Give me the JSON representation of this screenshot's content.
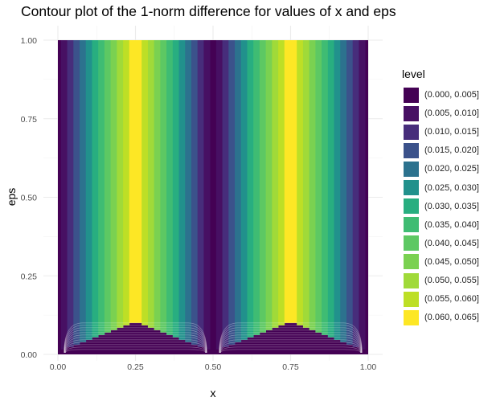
{
  "chart_data": {
    "type": "heatmap",
    "title": "Contour plot of the 1-norm difference for values of x and eps",
    "xlabel": "x",
    "ylabel": "eps",
    "xlim": [
      0,
      1
    ],
    "ylim": [
      0,
      1
    ],
    "x_ticks": [
      "0.00",
      "0.25",
      "0.50",
      "0.75",
      "1.00"
    ],
    "y_ticks": [
      "0.00",
      "0.25",
      "0.50",
      "0.75",
      "1.00"
    ],
    "legend": {
      "title": "level",
      "placement": "right",
      "levels": [
        {
          "label": "(0.000, 0.005]",
          "color": "#440154"
        },
        {
          "label": "(0.005, 0.010]",
          "color": "#471063"
        },
        {
          "label": "(0.010, 0.015]",
          "color": "#472D7B"
        },
        {
          "label": "(0.015, 0.020]",
          "color": "#3B528B"
        },
        {
          "label": "(0.020, 0.025]",
          "color": "#2C728E"
        },
        {
          "label": "(0.025, 0.030]",
          "color": "#21918C"
        },
        {
          "label": "(0.030, 0.035]",
          "color": "#28AE80"
        },
        {
          "label": "(0.035, 0.040]",
          "color": "#3FBC73"
        },
        {
          "label": "(0.040, 0.045]",
          "color": "#5DC863"
        },
        {
          "label": "(0.045, 0.050]",
          "color": "#7AD151"
        },
        {
          "label": "(0.050, 0.055]",
          "color": "#A0DA39"
        },
        {
          "label": "(0.055, 0.060]",
          "color": "#BDDF26"
        },
        {
          "label": "(0.060, 0.065]",
          "color": "#FDE725"
        }
      ]
    },
    "grid": true,
    "level_bands_by_x": [
      {
        "x_range": [
          0.0,
          0.01
        ],
        "level": 0
      },
      {
        "x_range": [
          0.01,
          0.03
        ],
        "level": 1
      },
      {
        "x_range": [
          0.03,
          0.05
        ],
        "level": 2
      },
      {
        "x_range": [
          0.05,
          0.07
        ],
        "level": 3
      },
      {
        "x_range": [
          0.07,
          0.09
        ],
        "level": 4
      },
      {
        "x_range": [
          0.09,
          0.11
        ],
        "level": 5
      },
      {
        "x_range": [
          0.11,
          0.13
        ],
        "level": 6
      },
      {
        "x_range": [
          0.13,
          0.15
        ],
        "level": 7
      },
      {
        "x_range": [
          0.15,
          0.17
        ],
        "level": 8
      },
      {
        "x_range": [
          0.17,
          0.19
        ],
        "level": 9
      },
      {
        "x_range": [
          0.19,
          0.21
        ],
        "level": 10
      },
      {
        "x_range": [
          0.21,
          0.23
        ],
        "level": 11
      },
      {
        "x_range": [
          0.23,
          0.27
        ],
        "level": 12
      },
      {
        "x_range": [
          0.27,
          0.29
        ],
        "level": 11
      },
      {
        "x_range": [
          0.29,
          0.31
        ],
        "level": 10
      },
      {
        "x_range": [
          0.31,
          0.33
        ],
        "level": 9
      },
      {
        "x_range": [
          0.33,
          0.35
        ],
        "level": 8
      },
      {
        "x_range": [
          0.35,
          0.37
        ],
        "level": 7
      },
      {
        "x_range": [
          0.37,
          0.39
        ],
        "level": 6
      },
      {
        "x_range": [
          0.39,
          0.41
        ],
        "level": 5
      },
      {
        "x_range": [
          0.41,
          0.43
        ],
        "level": 4
      },
      {
        "x_range": [
          0.43,
          0.45
        ],
        "level": 3
      },
      {
        "x_range": [
          0.45,
          0.47
        ],
        "level": 2
      },
      {
        "x_range": [
          0.47,
          0.49
        ],
        "level": 1
      },
      {
        "x_range": [
          0.49,
          0.51
        ],
        "level": 0
      },
      {
        "x_range": [
          0.51,
          0.53
        ],
        "level": 1
      },
      {
        "x_range": [
          0.53,
          0.55
        ],
        "level": 2
      },
      {
        "x_range": [
          0.55,
          0.57
        ],
        "level": 3
      },
      {
        "x_range": [
          0.57,
          0.59
        ],
        "level": 4
      },
      {
        "x_range": [
          0.59,
          0.61
        ],
        "level": 5
      },
      {
        "x_range": [
          0.61,
          0.63
        ],
        "level": 6
      },
      {
        "x_range": [
          0.63,
          0.65
        ],
        "level": 7
      },
      {
        "x_range": [
          0.65,
          0.67
        ],
        "level": 8
      },
      {
        "x_range": [
          0.67,
          0.69
        ],
        "level": 9
      },
      {
        "x_range": [
          0.69,
          0.71
        ],
        "level": 10
      },
      {
        "x_range": [
          0.71,
          0.73
        ],
        "level": 11
      },
      {
        "x_range": [
          0.73,
          0.77
        ],
        "level": 12
      },
      {
        "x_range": [
          0.77,
          0.79
        ],
        "level": 11
      },
      {
        "x_range": [
          0.79,
          0.81
        ],
        "level": 10
      },
      {
        "x_range": [
          0.81,
          0.83
        ],
        "level": 9
      },
      {
        "x_range": [
          0.83,
          0.85
        ],
        "level": 8
      },
      {
        "x_range": [
          0.85,
          0.87
        ],
        "level": 7
      },
      {
        "x_range": [
          0.87,
          0.89
        ],
        "level": 6
      },
      {
        "x_range": [
          0.89,
          0.91
        ],
        "level": 5
      },
      {
        "x_range": [
          0.91,
          0.93
        ],
        "level": 4
      },
      {
        "x_range": [
          0.93,
          0.95
        ],
        "level": 3
      },
      {
        "x_range": [
          0.95,
          0.97
        ],
        "level": 2
      },
      {
        "x_range": [
          0.97,
          0.99
        ],
        "level": 1
      },
      {
        "x_range": [
          0.99,
          1.0
        ],
        "level": 0
      }
    ],
    "eps_transition": {
      "eps_start": 0.0,
      "eps_full": 0.1
    }
  }
}
